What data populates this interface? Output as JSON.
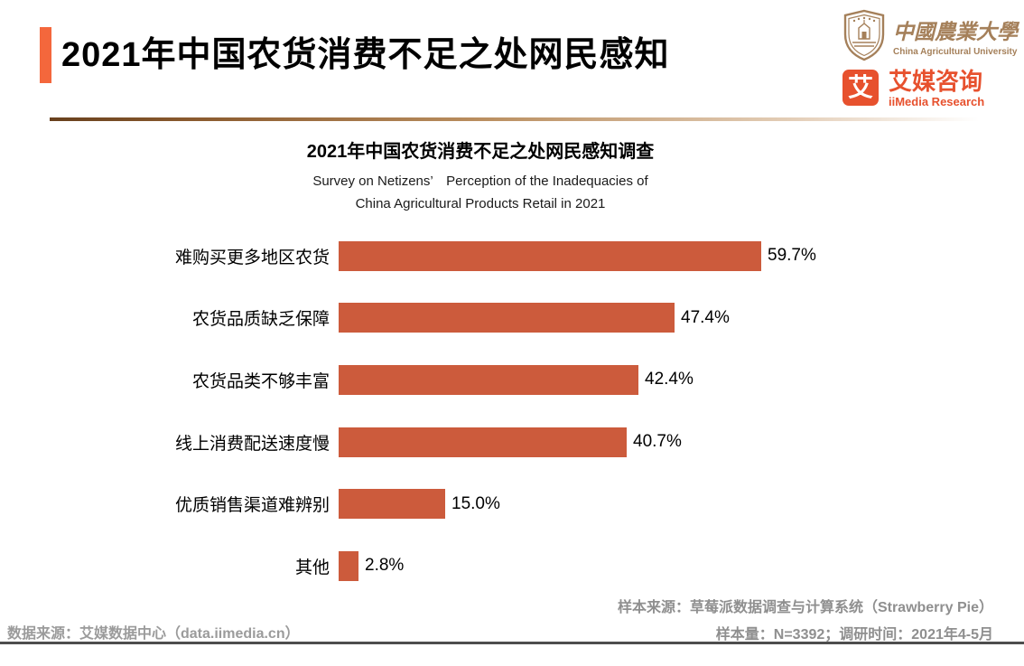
{
  "page": {
    "accent_color": "#F4673C",
    "divider_color": "#8a5a2e",
    "footer_rule_color": "#4d4d4d"
  },
  "header": {
    "title": "2021年中国农货消费不足之处网民感知"
  },
  "logos": {
    "cau": {
      "name_zh": "中國農業大學",
      "name_en": "China Agricultural University",
      "color": "#A5805A"
    },
    "iimedia": {
      "symbol": "艾",
      "name_zh": "艾媒咨询",
      "name_en": "iiMedia Research",
      "color": "#E7512E"
    }
  },
  "chart_data": {
    "type": "bar",
    "orientation": "horizontal",
    "title": "2021年中国农货消费不足之处网民感知调查",
    "subtitle_line1": "Survey on Netizens’　Perception of the Inadequacies of",
    "subtitle_line2": "China Agricultural Products Retail in 2021",
    "categories": [
      "难购买更多地区农货",
      "农货品质缺乏保障",
      "农货品类不够丰富",
      "线上消费配送速度慢",
      "优质销售渠道难辨别",
      "其他"
    ],
    "values": [
      59.7,
      47.4,
      42.4,
      40.7,
      15.0,
      2.8
    ],
    "value_labels": [
      "59.7%",
      "47.4%",
      "42.4%",
      "40.7%",
      "15.0%",
      "2.8%"
    ],
    "bar_color": "#CC5B3C",
    "xlim": [
      0,
      66
    ],
    "grid": false,
    "legend": false
  },
  "footer": {
    "sample_source": "样本来源：草莓派数据调查与计算系统（Strawberry Pie）",
    "sample_info": "样本量：N=3392；调研时间：2021年4-5月",
    "data_source": "数据来源：艾媒数据中心（data.iimedia.cn）"
  }
}
